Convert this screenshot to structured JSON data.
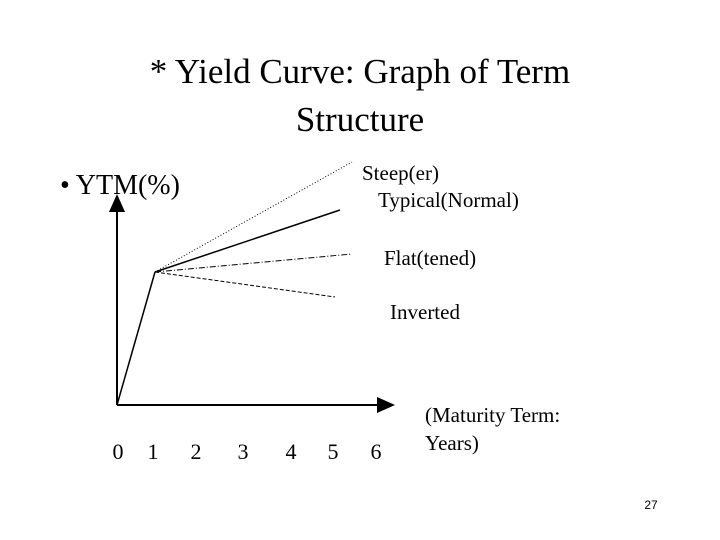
{
  "header": {
    "title_lines": [
      "* Yield Curve: Graph of Term",
      "Structure"
    ]
  },
  "bullet": "• YTM(%)",
  "curves": {
    "steep": "Steep(er)",
    "typical": "Typical(Normal)",
    "flat": "Flat(tened)",
    "inverted": "Inverted"
  },
  "x_axis": {
    "ticks": [
      "0",
      "1",
      "2",
      "3",
      "4",
      "5",
      "6"
    ],
    "label_lines": [
      "(Maturity Term:",
      "Years)"
    ]
  },
  "page_number": "27"
}
